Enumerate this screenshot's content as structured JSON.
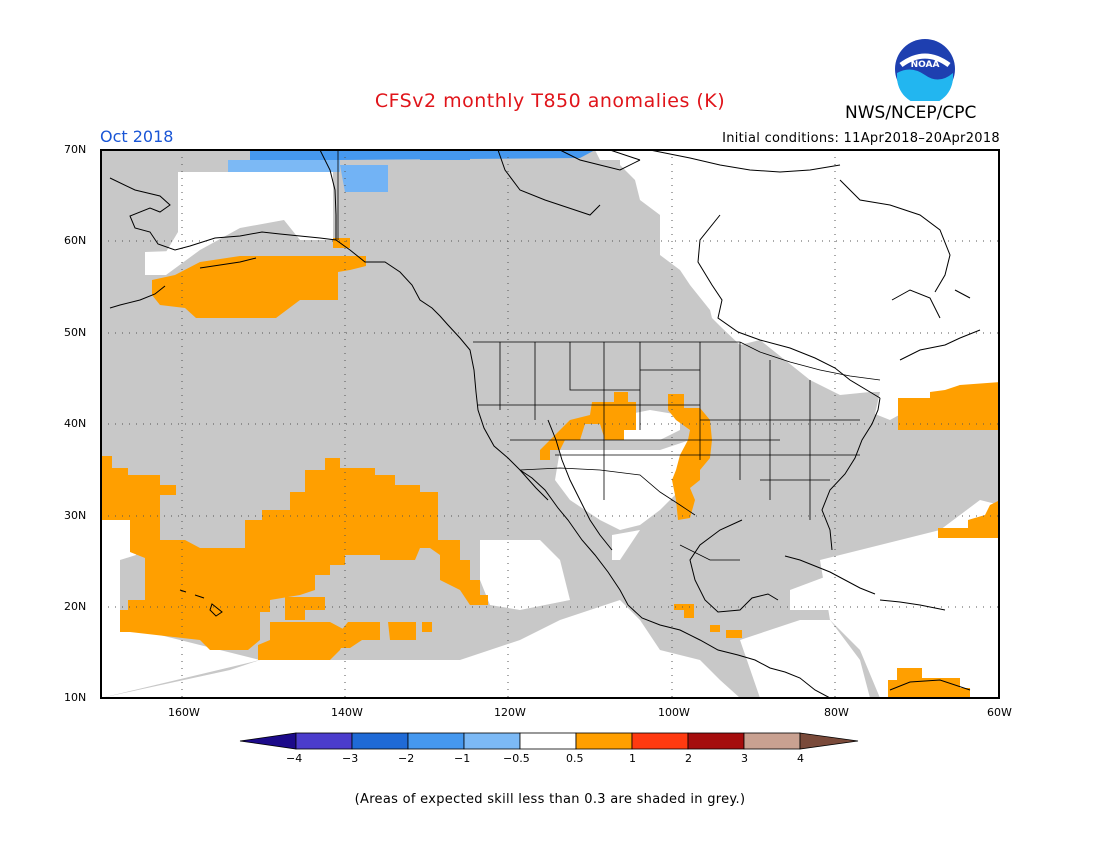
{
  "header": {
    "title": "CFSv2 monthly T850 anomalies (K)",
    "month": "Oct 2018",
    "initial_conditions": "Initial conditions: 11Apr2018–20Apr2018",
    "agency": "NWS/NCEP/CPC",
    "logo_text": "NOAA"
  },
  "footer": {
    "note": "(Areas of expected skill less than 0.3 are shaded in grey.)"
  },
  "map": {
    "region": "North Pacific / North America",
    "lon_range": [
      -172,
      -60
    ],
    "lat_range": [
      10,
      70
    ],
    "lat_labels": [
      {
        "lat": 70,
        "label": "70N"
      },
      {
        "lat": 60,
        "label": "60N"
      },
      {
        "lat": 50,
        "label": "50N"
      },
      {
        "lat": 40,
        "label": "40N"
      },
      {
        "lat": 30,
        "label": "30N"
      },
      {
        "lat": 20,
        "label": "20N"
      },
      {
        "lat": 10,
        "label": "10N"
      }
    ],
    "lon_labels": [
      {
        "lon": -160,
        "label": "160W"
      },
      {
        "lon": -140,
        "label": "140W"
      },
      {
        "lon": -120,
        "label": "120W"
      },
      {
        "lon": -100,
        "label": "100W"
      },
      {
        "lon": -80,
        "label": "80W"
      },
      {
        "lon": -60,
        "label": "60W"
      }
    ],
    "colors": {
      "low_skill_grey": "#c8c8c8",
      "warm_0_5_to_1": "#ff9f00",
      "cool_minus1_to_minus0_5": "#72b3f5",
      "cool_minus2_to_minus1": "#4598ef",
      "background": "#ffffff",
      "coastline": "#000000"
    }
  },
  "colorbar": {
    "colors": [
      "#1c0a8a",
      "#4b3ccc",
      "#1f6ad6",
      "#4598ef",
      "#7cb9f5",
      "#ffffff",
      "#ff9f00",
      "#ff3a10",
      "#a50d0d",
      "#c9a191",
      "#7a4a3a"
    ],
    "labels": [
      "−4",
      "−3",
      "−2",
      "−1",
      "−0.5",
      "0.5",
      "1",
      "2",
      "3",
      "4"
    ]
  }
}
